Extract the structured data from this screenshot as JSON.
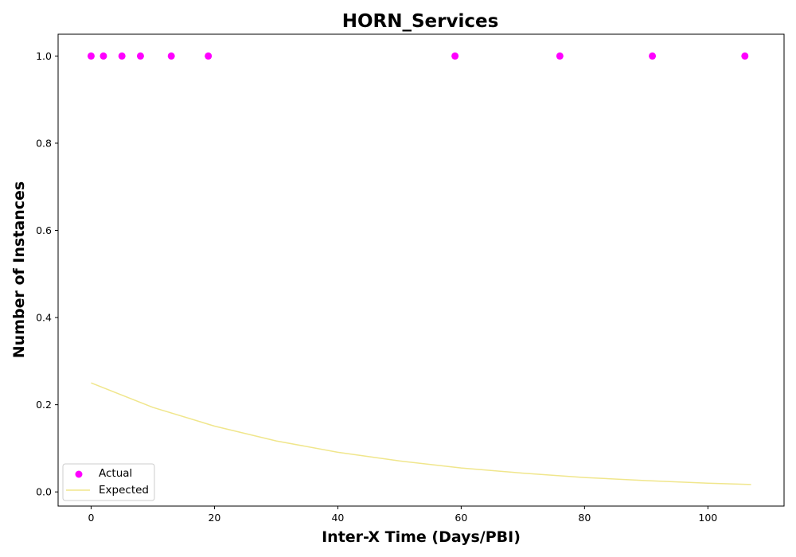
{
  "chart_data": {
    "type": "scatter",
    "title": "HORN_Services",
    "xlabel": "Inter-X Time (Days/PBI)",
    "ylabel": "Number of Instances",
    "xlim": [
      -5.35,
      112.35
    ],
    "ylim": [
      -0.0325,
      1.05
    ],
    "xticks": [
      0,
      20,
      40,
      60,
      80,
      100
    ],
    "yticks": [
      0.0,
      0.2,
      0.4,
      0.6,
      0.8,
      1.0
    ],
    "xtick_labels": [
      "0",
      "20",
      "40",
      "60",
      "80",
      "100"
    ],
    "ytick_labels": [
      "0.0",
      "0.2",
      "0.4",
      "0.6",
      "0.8",
      "1.0"
    ],
    "grid": false,
    "legend_position": "lower-left",
    "series": [
      {
        "name": "Actual",
        "kind": "scatter",
        "color": "#ff00ff",
        "x": [
          0,
          2,
          5,
          8,
          13,
          19,
          59,
          76,
          91,
          106
        ],
        "y": [
          1,
          1,
          1,
          1,
          1,
          1,
          1,
          1,
          1,
          1
        ]
      },
      {
        "name": "Expected",
        "kind": "line",
        "color": "#f0e68c",
        "x": [
          0,
          10,
          20,
          30,
          40,
          50,
          60,
          70,
          80,
          90,
          100,
          107
        ],
        "y": [
          0.25,
          0.194,
          0.151,
          0.117,
          0.091,
          0.071,
          0.055,
          0.043,
          0.033,
          0.026,
          0.02,
          0.017
        ]
      }
    ]
  }
}
